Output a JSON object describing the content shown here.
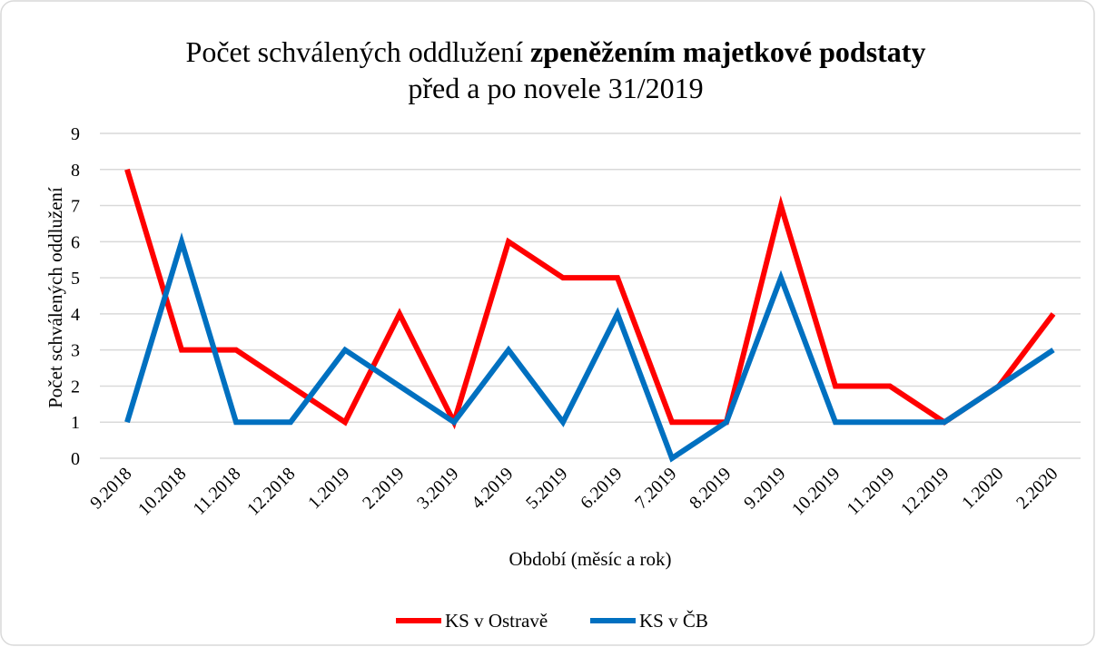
{
  "chart_data": {
    "type": "line",
    "title": [
      "Počet schválených oddlužení",
      "zpeněžením majetkové podstaty",
      "před a po novele 31/2019"
    ],
    "x_label": "Období (měsíc a rok)",
    "y_label": "Počet schválených oddlužení",
    "categories": [
      "9.2018",
      "10.2018",
      "11.2018",
      "12.2018",
      "1.2019",
      "2.2019",
      "3.2019",
      "4.2019",
      "5.2019",
      "6.2019",
      "7.2019",
      "8.2019",
      "9.2019",
      "10.2019",
      "11.2019",
      "12.2019",
      "1.2020",
      "2.2020"
    ],
    "series": [
      {
        "name": "KS v Ostravě",
        "color": "#ff0000",
        "values": [
          8,
          3,
          3,
          2,
          1,
          4,
          1,
          6,
          5,
          5,
          1,
          1,
          7,
          2,
          2,
          1,
          2,
          4
        ]
      },
      {
        "name": "KS v ČB",
        "color": "#0070c0",
        "values": [
          1,
          6,
          1,
          1,
          3,
          2,
          1,
          3,
          1,
          4,
          0,
          1,
          5,
          1,
          1,
          1,
          2,
          3
        ]
      }
    ],
    "ylim": [
      0,
      9
    ],
    "yticks": [
      0,
      1,
      2,
      3,
      4,
      5,
      6,
      7,
      8,
      9
    ],
    "grid": true,
    "legend": "bottom"
  }
}
